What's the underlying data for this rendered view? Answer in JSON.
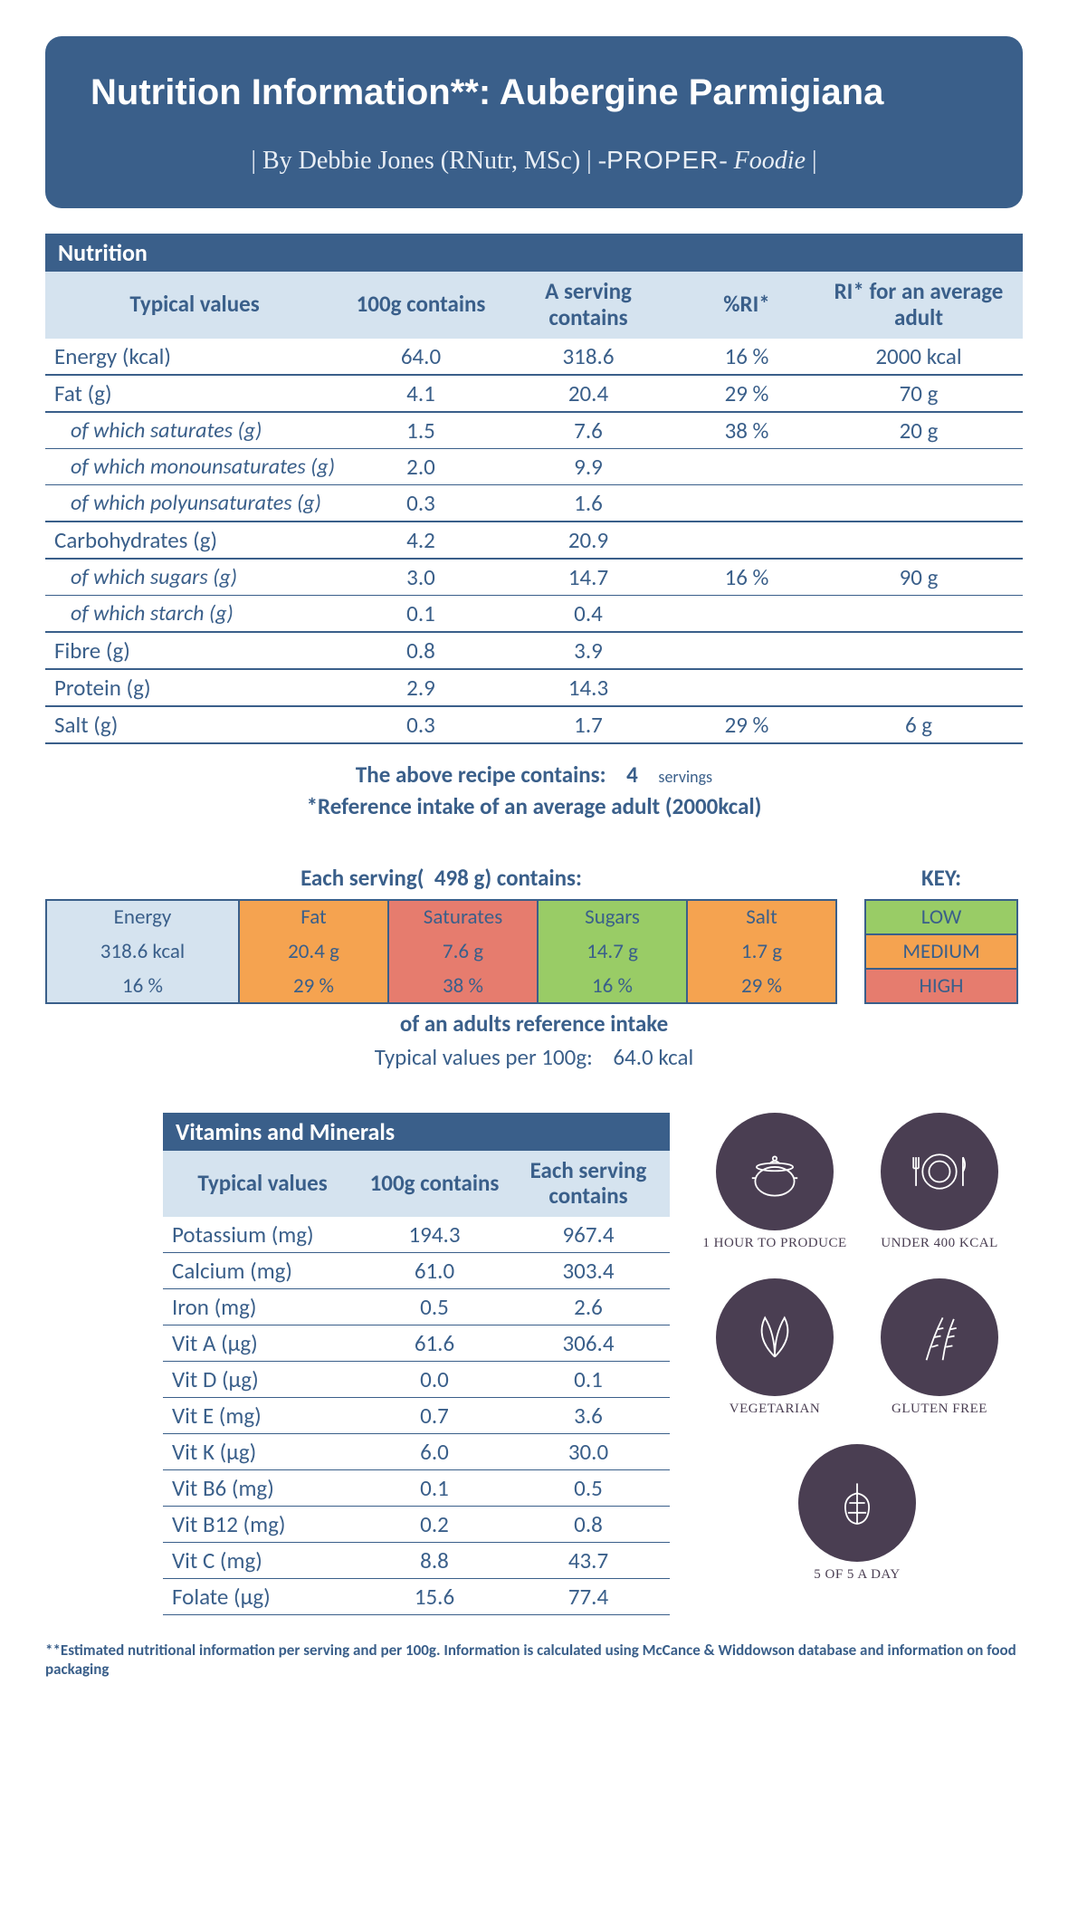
{
  "header": {
    "title": "Nutrition Information**: Aubergine Parmigiana",
    "by_prefix": "| By Debbie Jones (RNutr, MSc) | -",
    "proper": "PROPER",
    "foodie": "- Foodie",
    "by_suffix": " |"
  },
  "nutrition": {
    "bar": "Nutrition",
    "cols": {
      "typical": "Typical values",
      "per100": "100g contains",
      "serving": "A serving contains",
      "pri": "%RI*",
      "ri": "RI* for an average adult"
    },
    "rows": [
      {
        "label": "Energy (kcal)",
        "p100": "64.0",
        "serv": "318.6",
        "pri": "16  %",
        "ri": "2000  kcal",
        "sub": false
      },
      {
        "label": "Fat (g)",
        "p100": "4.1",
        "serv": "20.4",
        "pri": "29  %",
        "ri": "70  g",
        "sub": false
      },
      {
        "label": "of which saturates (g)",
        "p100": "1.5",
        "serv": "7.6",
        "pri": "38  %",
        "ri": "20  g",
        "sub": true
      },
      {
        "label": "of which monounsaturates (g)",
        "p100": "2.0",
        "serv": "9.9",
        "pri": "",
        "ri": "",
        "sub": true
      },
      {
        "label": "of which polyunsaturates (g)",
        "p100": "0.3",
        "serv": "1.6",
        "pri": "",
        "ri": "",
        "sub": true,
        "last": true
      },
      {
        "label": "Carbohydrates (g)",
        "p100": "4.2",
        "serv": "20.9",
        "pri": "",
        "ri": "",
        "sub": false
      },
      {
        "label": "of which sugars (g)",
        "p100": "3.0",
        "serv": "14.7",
        "pri": "16  %",
        "ri": "90  g",
        "sub": true
      },
      {
        "label": "of which starch (g)",
        "p100": "0.1",
        "serv": "0.4",
        "pri": "",
        "ri": "",
        "sub": true,
        "last": true
      },
      {
        "label": "Fibre (g)",
        "p100": "0.8",
        "serv": "3.9",
        "pri": "",
        "ri": "",
        "sub": false
      },
      {
        "label": "Protein (g)",
        "p100": "2.9",
        "serv": "14.3",
        "pri": "",
        "ri": "",
        "sub": false
      },
      {
        "label": "Salt (g)",
        "p100": "0.3",
        "serv": "1.7",
        "pri": "29  %",
        "ri": "6  g",
        "sub": false
      }
    ],
    "servings_prefix": "The above recipe contains:",
    "servings_n": "4",
    "servings_word": "servings",
    "ref_line": "*Reference intake of an average adult (2000kcal)"
  },
  "traffic": {
    "title_prefix": "Each serving(",
    "title_grams": "498",
    "title_suffix": " g) contains:",
    "key_label": "KEY:",
    "cells": {
      "energy": {
        "label": "Energy",
        "val": "318.6  kcal",
        "pct": "16  %",
        "bg": "bg-neutral"
      },
      "fat": {
        "label": "Fat",
        "val": "20.4  g",
        "pct": "29  %",
        "bg": "bg-med"
      },
      "sat": {
        "label": "Saturates",
        "val": "7.6  g",
        "pct": "38  %",
        "bg": "bg-high"
      },
      "sugar": {
        "label": "Sugars",
        "val": "14.7  g",
        "pct": "16  %",
        "bg": "bg-low"
      },
      "salt": {
        "label": "Salt",
        "val": "1.7  g",
        "pct": "29  %",
        "bg": "bg-med"
      }
    },
    "key": {
      "low": "LOW",
      "med": "MEDIUM",
      "high": "HIGH"
    },
    "after1": "of an adults reference intake",
    "after2_pre": "Typical values per 100g:",
    "after2_val": "64.0  kcal",
    "colors": {
      "low": "#99cc66",
      "med": "#f5a350",
      "high": "#e67c6e",
      "neutral": "#d5e3ef",
      "border": "#3a5f8a"
    }
  },
  "vitamins": {
    "bar": "Vitamins and Minerals",
    "cols": {
      "typical": "Typical values",
      "p100": "100g contains",
      "serv": "Each serving contains"
    },
    "rows": [
      {
        "label": "Potassium (mg)",
        "p100": "194.3",
        "serv": "967.4"
      },
      {
        "label": "Calcium (mg)",
        "p100": "61.0",
        "serv": "303.4"
      },
      {
        "label": "Iron (mg)",
        "p100": "0.5",
        "serv": "2.6"
      },
      {
        "label": "Vit A (µg)",
        "p100": "61.6",
        "serv": "306.4"
      },
      {
        "label": "Vit D (µg)",
        "p100": "0.0",
        "serv": "0.1"
      },
      {
        "label": "Vit E (mg)",
        "p100": "0.7",
        "serv": "3.6"
      },
      {
        "label": "Vit K (µg)",
        "p100": "6.0",
        "serv": "30.0"
      },
      {
        "label": "Vit B6 (mg)",
        "p100": "0.1",
        "serv": "0.5"
      },
      {
        "label": "Vit B12 (mg)",
        "p100": "0.2",
        "serv": "0.8"
      },
      {
        "label": "Vit C (mg)",
        "p100": "8.8",
        "serv": "43.7"
      },
      {
        "label": "Folate (µg)",
        "p100": "15.6",
        "serv": "77.4"
      }
    ]
  },
  "badges": [
    {
      "label": "1 HOUR TO PRODUCE",
      "icon": "pot"
    },
    {
      "label": "UNDER 400 KCAL",
      "icon": "plate"
    },
    {
      "label": "VEGETARIAN",
      "icon": "leaf"
    },
    {
      "label": "GLUTEN FREE",
      "icon": "wheat"
    },
    {
      "label": "5 OF 5 A DAY",
      "icon": "produce"
    }
  ],
  "footnote": "**Estimated nutritional information per serving and per 100g. Information is calculated using McCance & Widdowson database and information on food packaging",
  "theme": {
    "primary": "#3a5f8a",
    "header_bg": "#3a5f8a",
    "subhead_bg": "#d5e3ef",
    "badge_bg": "#4a3e52",
    "text": "#3a5f8a",
    "font_body": "Calibri",
    "font_title": "Comic Sans MS"
  }
}
